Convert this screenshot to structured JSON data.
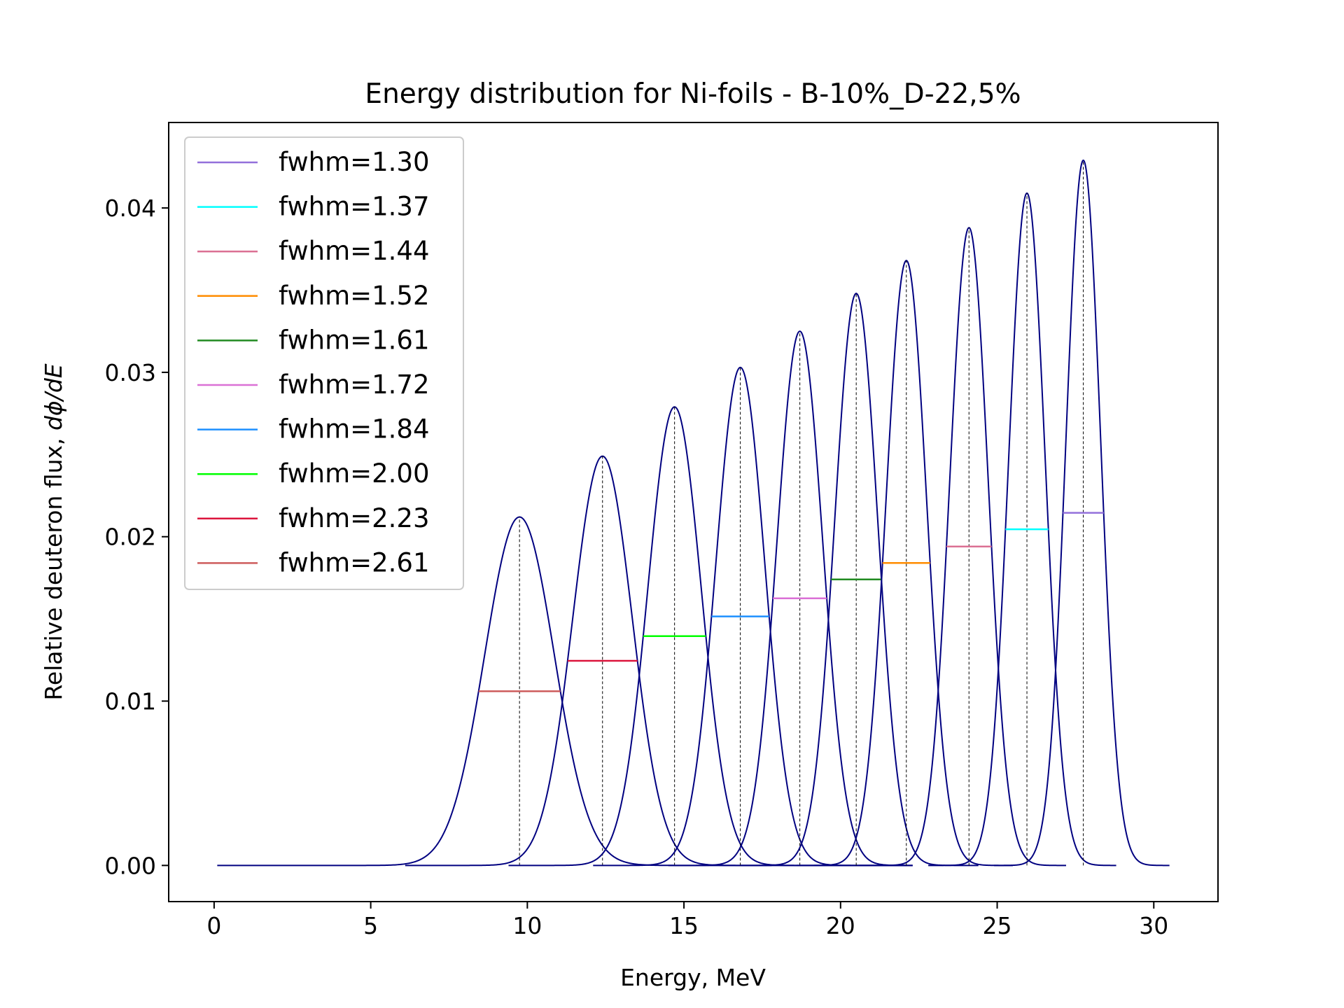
{
  "chart_data": {
    "type": "line",
    "title": "Energy distribution for Ni-foils - B-10%_D-22,5%",
    "xlabel": "Energy, MeV",
    "ylabel_prefix": "Relative deuteron flux, ",
    "ylabel_math": "dϕ/dE",
    "xlim": [
      -1.45,
      32.05
    ],
    "ylim": [
      -0.0022,
      0.0452
    ],
    "xticks": [
      0,
      5,
      10,
      15,
      20,
      25,
      30
    ],
    "xtick_labels": [
      "0",
      "5",
      "10",
      "15",
      "20",
      "25",
      "30"
    ],
    "yticks": [
      0.0,
      0.01,
      0.02,
      0.03,
      0.04
    ],
    "ytick_labels": [
      "0.00",
      "0.01",
      "0.02",
      "0.03",
      "0.04"
    ],
    "grid": false,
    "legend_position": "upper-left",
    "curve_color": "#000080",
    "peak_marker_style": "dashed vertical lines from baseline to each peak",
    "series": [
      {
        "name": "fwhm=2.61",
        "fwhm_color": "#cd5c5c",
        "peak_energy": 9.75,
        "peak_flux": 0.0212,
        "fwhm": 2.61,
        "x_range": [
          0.1,
          17.8
        ]
      },
      {
        "name": "fwhm=2.23",
        "fwhm_color": "#dc143c",
        "peak_energy": 12.4,
        "peak_flux": 0.0249,
        "fwhm": 2.23,
        "x_range": [
          6.1,
          22.1
        ]
      },
      {
        "name": "fwhm=2.00",
        "fwhm_color": "#00ff00",
        "peak_energy": 14.7,
        "peak_flux": 0.0279,
        "fwhm": 2.0,
        "x_range": [
          9.4,
          22.3
        ]
      },
      {
        "name": "fwhm=1.84",
        "fwhm_color": "#1e90ff",
        "peak_energy": 16.8,
        "peak_flux": 0.0303,
        "fwhm": 1.84,
        "x_range": [
          12.1,
          22.3
        ]
      },
      {
        "name": "fwhm=1.72",
        "fwhm_color": "#da70d6",
        "peak_energy": 18.7,
        "peak_flux": 0.0325,
        "fwhm": 1.72,
        "x_range": [
          14.5,
          22.3
        ]
      },
      {
        "name": "fwhm=1.61",
        "fwhm_color": "#228b22",
        "peak_energy": 20.5,
        "peak_flux": 0.0348,
        "fwhm": 1.61,
        "x_range": [
          16.8,
          24.4
        ]
      },
      {
        "name": "fwhm=1.52",
        "fwhm_color": "#ff8c00",
        "peak_energy": 22.1,
        "peak_flux": 0.0368,
        "fwhm": 1.52,
        "x_range": [
          18.6,
          25.5
        ]
      },
      {
        "name": "fwhm=1.44",
        "fwhm_color": "#db7093",
        "peak_energy": 24.1,
        "peak_flux": 0.0388,
        "fwhm": 1.44,
        "x_range": [
          20.6,
          27.2
        ]
      },
      {
        "name": "fwhm=1.37",
        "fwhm_color": "#00ffff",
        "peak_energy": 25.95,
        "peak_flux": 0.0409,
        "fwhm": 1.37,
        "x_range": [
          22.8,
          28.8
        ]
      },
      {
        "name": "fwhm=1.30",
        "fwhm_color": "#9370db",
        "peak_energy": 27.75,
        "peak_flux": 0.0429,
        "fwhm": 1.3,
        "x_range": [
          24.9,
          30.5
        ]
      }
    ]
  }
}
